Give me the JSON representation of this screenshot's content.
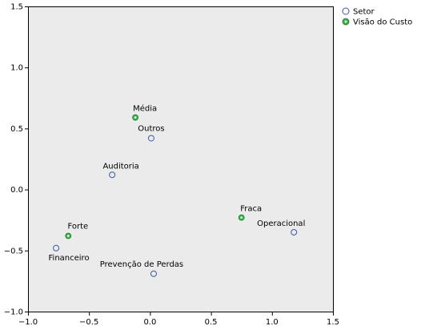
{
  "chart_data": {
    "type": "scatter",
    "xlim": [
      -1.0,
      1.5
    ],
    "ylim": [
      -1.0,
      1.5
    ],
    "x_ticks": [
      "−1.0",
      "−0.5",
      "0.0",
      "0.5",
      "1.0",
      "1.5"
    ],
    "y_ticks": [
      "−1.0",
      "−0.5",
      "0.0",
      "0.5",
      "1.0",
      "1.5"
    ],
    "x_tick_values": [
      -1.0,
      -0.5,
      0.0,
      0.5,
      1.0,
      1.5
    ],
    "y_tick_values": [
      -1.0,
      -0.5,
      0.0,
      0.5,
      1.0,
      1.5
    ],
    "grid": false,
    "plot_background": "#ebebeb",
    "legend_position": "top-right",
    "series": [
      {
        "name": "Setor",
        "marker": "hollow-circle",
        "color": "#3a5ba0",
        "points": [
          {
            "label": "Outros",
            "x": 0.01,
            "y": 0.42
          },
          {
            "label": "Auditoria",
            "x": -0.31,
            "y": 0.12
          },
          {
            "label": "Operacional",
            "x": 1.18,
            "y": -0.35
          },
          {
            "label": "Financeiro",
            "x": -0.77,
            "y": -0.48
          },
          {
            "label": "Prevenção de Perdas",
            "x": 0.03,
            "y": -0.69
          }
        ]
      },
      {
        "name": "Visão do Custo",
        "marker": "filled-circle",
        "color": "#3cb44b",
        "points": [
          {
            "label": "Média",
            "x": -0.12,
            "y": 0.59
          },
          {
            "label": "Fraca",
            "x": 0.75,
            "y": -0.23
          },
          {
            "label": "Forte",
            "x": -0.67,
            "y": -0.38
          }
        ]
      }
    ]
  }
}
